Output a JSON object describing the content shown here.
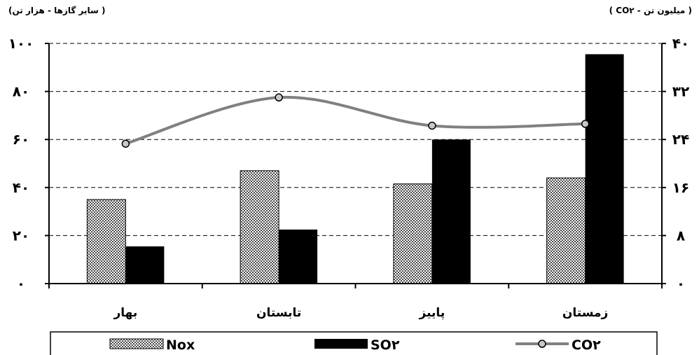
{
  "chart_data": {
    "type": "bar",
    "categories": [
      "بهار",
      "تابستان",
      "پاییز",
      "زمستان"
    ],
    "left_axis_title": "( سایر گازها -  هزار تن)",
    "right_axis_title": "( CO۲ - میلیون تن )",
    "left_ticks": [
      "۰",
      "۲۰",
      "۴۰",
      "۶۰",
      "۸۰",
      "۱۰۰"
    ],
    "right_ticks": [
      "۰",
      "۸",
      "۱۶",
      "۲۴",
      "۳۲",
      "۴۰"
    ],
    "ylim_left": [
      0,
      100
    ],
    "ylim_right": [
      0,
      40
    ],
    "grid": "horizontal dashed",
    "legend_position": "bottom",
    "series": [
      {
        "name": "Nox",
        "kind": "bar",
        "axis": "left",
        "pattern": "checker",
        "color": "#808080",
        "values": [
          35,
          47,
          41.5,
          44
        ]
      },
      {
        "name": "SO۲",
        "kind": "bar",
        "axis": "left",
        "pattern": "solid",
        "color": "#000000",
        "values": [
          15.5,
          22.5,
          60,
          95.5
        ]
      },
      {
        "name": "CO۲",
        "kind": "line",
        "axis": "right",
        "color": "#808080",
        "values": [
          23.3,
          31,
          26.3,
          26.6
        ]
      }
    ]
  }
}
